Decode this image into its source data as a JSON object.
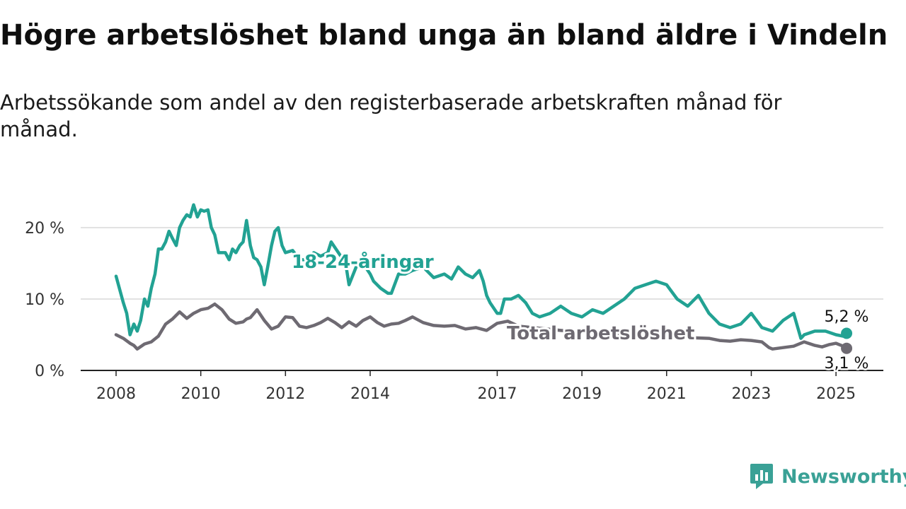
{
  "title": "Högre arbetslöshet bland unga än bland äldre i Vindeln",
  "subtitle": "Arbetssökande som andel av den registerbaserade arbetskraften månad för månad.",
  "brand": {
    "name": "Newsworthy"
  },
  "colors": {
    "youth": "#22a293",
    "total": "#6e6a72",
    "grid": "#d9d9d9",
    "axis": "#222222"
  },
  "chart_data": {
    "type": "line",
    "title": "Högre arbetslöshet bland unga än bland äldre i Vindeln",
    "subtitle": "Arbetssökande som andel av den registerbaserade arbetskraften månad för månad.",
    "x_unit": "year (monthly data)",
    "xlim": [
      2007.7,
      2026.0
    ],
    "ylim": [
      0,
      22
    ],
    "y_ticks": [
      0,
      10,
      20
    ],
    "y_tick_labels": [
      "0 %",
      "10 %",
      "20 %"
    ],
    "x_ticks": [
      2008,
      2010,
      2012,
      2014,
      2017,
      2019,
      2021,
      2023,
      2025
    ],
    "x_tick_labels": [
      "2008",
      "2010",
      "2012",
      "2014",
      "2017",
      "2019",
      "2021",
      "2023",
      "2025"
    ],
    "grid": true,
    "series": [
      {
        "name": "18-24-åringar",
        "end_label": "5,2 %",
        "x": [
          2008.0,
          2008.17,
          2008.25,
          2008.33,
          2008.42,
          2008.5,
          2008.58,
          2008.67,
          2008.75,
          2008.83,
          2008.92,
          2009.0,
          2009.08,
          2009.17,
          2009.25,
          2009.33,
          2009.42,
          2009.5,
          2009.58,
          2009.67,
          2009.75,
          2009.83,
          2009.92,
          2010.0,
          2010.08,
          2010.17,
          2010.25,
          2010.33,
          2010.42,
          2010.5,
          2010.58,
          2010.67,
          2010.75,
          2010.83,
          2010.92,
          2011.0,
          2011.08,
          2011.17,
          2011.25,
          2011.33,
          2011.42,
          2011.5,
          2011.58,
          2011.67,
          2011.75,
          2011.83,
          2011.92,
          2012.0,
          2012.17,
          2012.33,
          2012.5,
          2012.67,
          2012.83,
          2013.0,
          2013.08,
          2013.25,
          2013.42,
          2013.5,
          2013.67,
          2013.83,
          2014.0,
          2014.08,
          2014.25,
          2014.42,
          2014.5,
          2014.67,
          2014.83,
          2015.0,
          2015.25,
          2015.5,
          2015.75,
          2015.92,
          2016.08,
          2016.25,
          2016.42,
          2016.58,
          2016.67,
          2016.75,
          2016.83,
          2017.0,
          2017.08,
          2017.17,
          2017.33,
          2017.5,
          2017.67,
          2017.83,
          2018.0,
          2018.25,
          2018.5,
          2018.75,
          2019.0,
          2019.25,
          2019.5,
          2019.75,
          2020.0,
          2020.25,
          2020.5,
          2020.75,
          2021.0,
          2021.25,
          2021.5,
          2021.75,
          2022.0,
          2022.25,
          2022.5,
          2022.75,
          2023.0,
          2023.25,
          2023.5,
          2023.75,
          2024.0,
          2024.17,
          2024.25,
          2024.5,
          2024.75,
          2025.0,
          2025.17,
          2025.25
        ],
        "values": [
          13.2,
          9.5,
          8.0,
          5.0,
          6.5,
          5.5,
          7.0,
          10.0,
          9.0,
          11.5,
          13.5,
          17.0,
          17.0,
          18.0,
          19.5,
          18.5,
          17.5,
          20.0,
          21.0,
          21.8,
          21.5,
          23.2,
          21.5,
          22.5,
          22.3,
          22.5,
          20.0,
          19.0,
          16.5,
          16.5,
          16.5,
          15.5,
          17.0,
          16.5,
          17.5,
          18.0,
          21.0,
          17.5,
          15.8,
          15.5,
          14.5,
          12.0,
          14.5,
          17.5,
          19.5,
          20.0,
          17.5,
          16.5,
          16.8,
          15.5,
          15.5,
          16.5,
          16.0,
          16.5,
          18.0,
          16.5,
          15.0,
          12.0,
          14.5,
          15.0,
          13.5,
          12.5,
          11.5,
          10.8,
          10.8,
          13.5,
          13.5,
          14.0,
          14.5,
          13.0,
          13.5,
          12.8,
          14.5,
          13.5,
          13.0,
          14.0,
          12.5,
          10.5,
          9.5,
          8.0,
          8.0,
          10.0,
          10.0,
          10.5,
          9.5,
          8.0,
          7.5,
          8.0,
          9.0,
          8.0,
          7.5,
          8.5,
          8.0,
          9.0,
          10.0,
          11.5,
          12.0,
          12.5,
          12.0,
          10.0,
          9.0,
          10.5,
          8.0,
          6.5,
          6.0,
          6.5,
          8.0,
          6.0,
          5.5,
          7.0,
          8.0,
          4.5,
          5.0,
          5.5,
          5.5,
          5.0,
          4.8,
          5.2
        ]
      },
      {
        "name": "Total arbetslöshet",
        "end_label": "3,1 %",
        "x": [
          2008.0,
          2008.17,
          2008.33,
          2008.42,
          2008.5,
          2008.67,
          2008.83,
          2009.0,
          2009.17,
          2009.33,
          2009.5,
          2009.67,
          2009.83,
          2010.0,
          2010.17,
          2010.33,
          2010.5,
          2010.67,
          2010.83,
          2011.0,
          2011.08,
          2011.17,
          2011.33,
          2011.5,
          2011.67,
          2011.83,
          2012.0,
          2012.17,
          2012.33,
          2012.5,
          2012.67,
          2012.83,
          2013.0,
          2013.17,
          2013.33,
          2013.5,
          2013.67,
          2013.83,
          2014.0,
          2014.17,
          2014.33,
          2014.5,
          2014.67,
          2014.83,
          2015.0,
          2015.25,
          2015.5,
          2015.75,
          2016.0,
          2016.25,
          2016.5,
          2016.75,
          2017.0,
          2017.25,
          2017.5,
          2018.0,
          2018.5,
          2019.0,
          2019.5,
          2020.0,
          2020.5,
          2021.0,
          2021.5,
          2022.0,
          2022.25,
          2022.5,
          2022.75,
          2023.0,
          2023.25,
          2023.42,
          2023.5,
          2023.75,
          2024.0,
          2024.25,
          2024.5,
          2024.67,
          2024.83,
          2025.0,
          2025.17,
          2025.25
        ],
        "values": [
          5.0,
          4.5,
          3.8,
          3.5,
          3.0,
          3.7,
          4.0,
          4.8,
          6.5,
          7.2,
          8.2,
          7.3,
          8.0,
          8.5,
          8.7,
          9.3,
          8.5,
          7.2,
          6.6,
          6.8,
          7.2,
          7.4,
          8.5,
          7.0,
          5.8,
          6.2,
          7.5,
          7.4,
          6.2,
          6.0,
          6.3,
          6.7,
          7.3,
          6.7,
          6.0,
          6.8,
          6.2,
          7.0,
          7.5,
          6.7,
          6.2,
          6.5,
          6.6,
          7.0,
          7.5,
          6.7,
          6.3,
          6.2,
          6.3,
          5.8,
          6.0,
          5.6,
          6.6,
          6.9,
          6.2,
          5.9,
          5.6,
          5.4,
          5.1,
          4.9,
          4.8,
          4.7,
          4.6,
          4.5,
          4.2,
          4.1,
          4.3,
          4.2,
          4.0,
          3.2,
          3.0,
          3.2,
          3.4,
          4.0,
          3.5,
          3.3,
          3.6,
          3.8,
          3.4,
          3.1
        ]
      }
    ]
  }
}
